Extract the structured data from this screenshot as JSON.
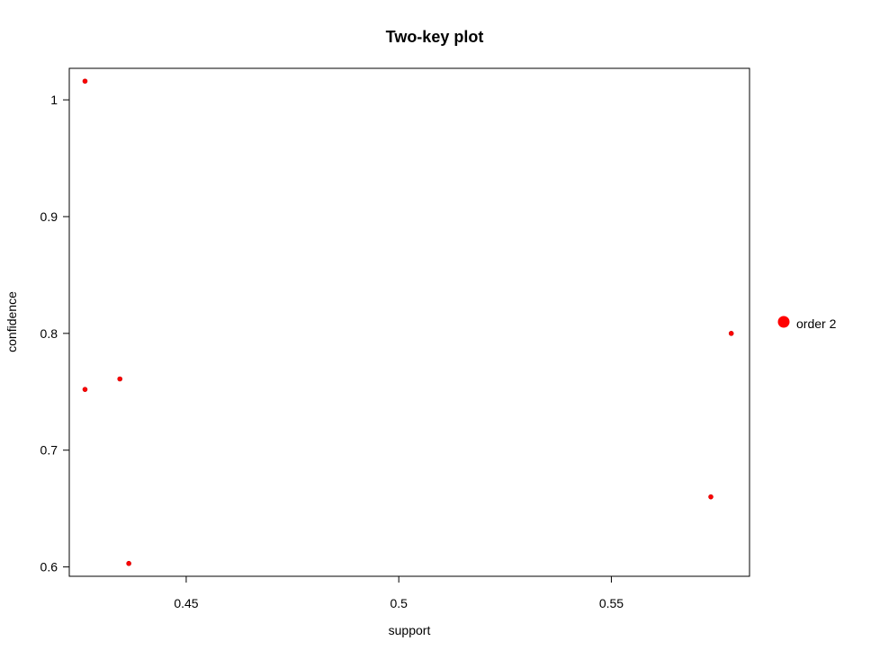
{
  "chart_data": {
    "type": "scatter",
    "title": "Two-key plot",
    "xlabel": "support",
    "ylabel": "confidence",
    "xlim": [
      0.4225,
      0.5825
    ],
    "ylim": [
      0.592,
      1.027
    ],
    "xticks": [
      0.45,
      0.5,
      0.55
    ],
    "xtick_labels": [
      "0.45",
      "0.5",
      "0.55"
    ],
    "yticks": [
      0.6,
      0.7,
      0.8,
      0.9,
      1.0
    ],
    "ytick_labels": [
      "0.6",
      "0.7",
      "0.8",
      "0.9",
      "1"
    ],
    "grid": false,
    "legend": {
      "position": "right",
      "entries": [
        {
          "label": "order 2",
          "color": "#ff0000"
        }
      ]
    },
    "series": [
      {
        "name": "order 2",
        "color": "#ff0000",
        "points": [
          {
            "x": 0.4262,
            "y": 1.016
          },
          {
            "x": 0.4262,
            "y": 0.752
          },
          {
            "x": 0.4344,
            "y": 0.761
          },
          {
            "x": 0.4365,
            "y": 0.603
          },
          {
            "x": 0.5734,
            "y": 0.66
          },
          {
            "x": 0.5782,
            "y": 0.8
          }
        ]
      }
    ]
  }
}
